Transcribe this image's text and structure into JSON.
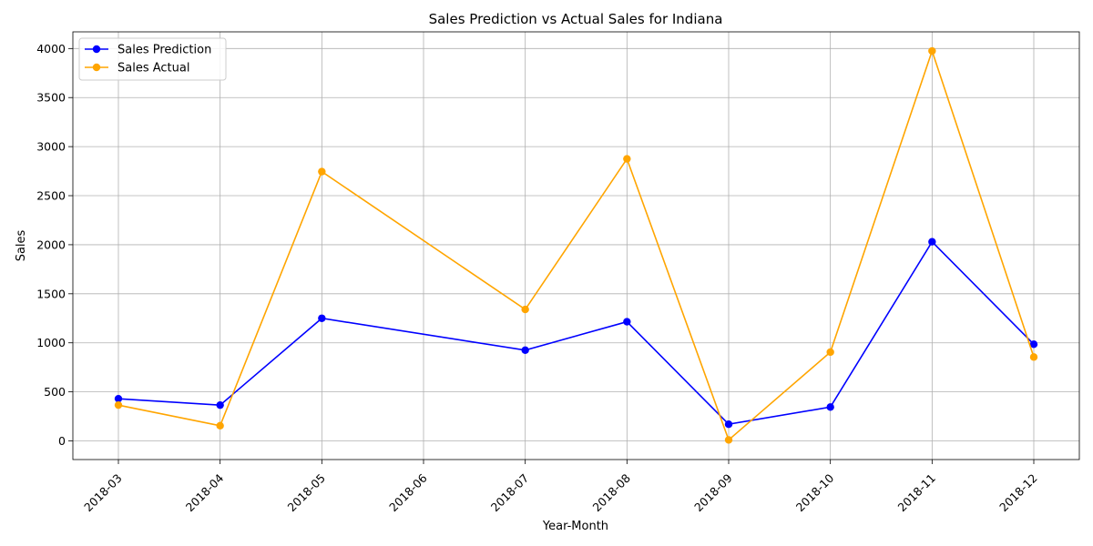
{
  "chart_data": {
    "type": "line",
    "title": "Sales Prediction vs Actual Sales for Indiana",
    "xlabel": "Year-Month",
    "ylabel": "Sales",
    "x_ticks": [
      "2018-03",
      "2018-04",
      "2018-05",
      "2018-06",
      "2018-07",
      "2018-08",
      "2018-09",
      "2018-10",
      "2018-11",
      "2018-12"
    ],
    "x": [
      "2018-03",
      "2018-04",
      "2018-05",
      "2018-07",
      "2018-08",
      "2018-09",
      "2018-10",
      "2018-11",
      "2018-12"
    ],
    "y_ticks": [
      0,
      500,
      1000,
      1500,
      2000,
      2500,
      3000,
      3500,
      4000
    ],
    "ylim": [
      -190,
      4170
    ],
    "grid": true,
    "legend_position": "top-left",
    "series": [
      {
        "name": "Sales Prediction",
        "color": "#0000ff",
        "marker": "circle",
        "values": [
          430,
          365,
          1250,
          925,
          1215,
          170,
          345,
          2030,
          985
        ]
      },
      {
        "name": "Sales Actual",
        "color": "#ffa500",
        "marker": "circle",
        "values": [
          365,
          155,
          2745,
          1340,
          2875,
          10,
          905,
          3975,
          855
        ]
      }
    ]
  }
}
